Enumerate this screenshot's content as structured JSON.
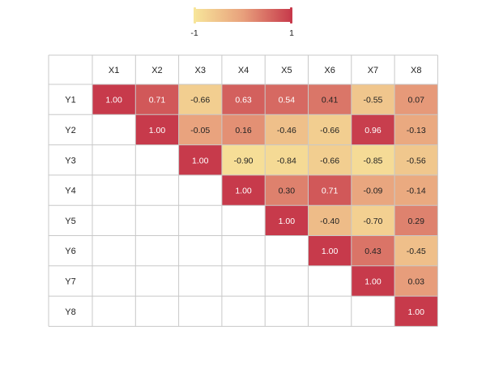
{
  "chart_data": {
    "type": "heatmap",
    "title": "",
    "columns": [
      "X1",
      "X2",
      "X3",
      "X4",
      "X5",
      "X6",
      "X7",
      "X8"
    ],
    "rows": [
      "Y1",
      "Y2",
      "Y3",
      "Y4",
      "Y5",
      "Y6",
      "Y7",
      "Y8"
    ],
    "values": [
      [
        1.0,
        0.71,
        -0.66,
        0.63,
        0.54,
        0.41,
        -0.55,
        0.07
      ],
      [
        null,
        1.0,
        -0.05,
        0.16,
        -0.46,
        -0.66,
        0.96,
        -0.13
      ],
      [
        null,
        null,
        1.0,
        -0.9,
        -0.84,
        -0.66,
        -0.85,
        -0.56
      ],
      [
        null,
        null,
        null,
        1.0,
        0.3,
        0.71,
        -0.09,
        -0.14
      ],
      [
        null,
        null,
        null,
        null,
        1.0,
        -0.4,
        -0.7,
        0.29
      ],
      [
        null,
        null,
        null,
        null,
        null,
        1.0,
        0.43,
        -0.45
      ],
      [
        null,
        null,
        null,
        null,
        null,
        null,
        1.0,
        0.03
      ],
      [
        null,
        null,
        null,
        null,
        null,
        null,
        null,
        1.0
      ]
    ],
    "value_format": "0.00",
    "color_scale": {
      "min": -1,
      "max": 1,
      "min_label": "-1",
      "max_label": "1",
      "stops": [
        "#f7e59a",
        "#e8a07c",
        "#c73a4b"
      ]
    },
    "legend_position": "top-center",
    "grid": true
  },
  "colors": {
    "grid_line": "#c8c8c8",
    "empty_cell": "#ffffff",
    "dark_text": "#222222",
    "light_text": "#ffffff"
  }
}
